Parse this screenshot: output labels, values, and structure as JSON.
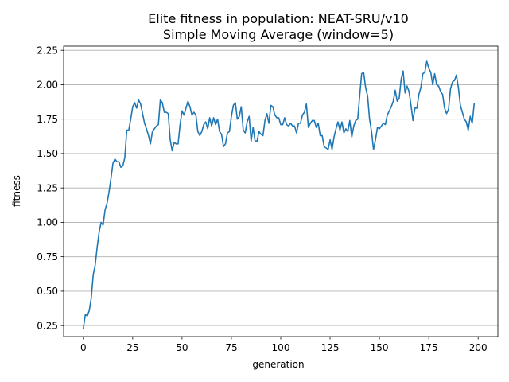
{
  "chart_data": {
    "type": "line",
    "title": "Elite fitness in population: NEAT-SRU/v10",
    "subtitle": "Simple Moving Average (window=5)",
    "xlabel": "generation",
    "ylabel": "fitness",
    "xlim": [
      -10,
      210
    ],
    "ylim": [
      0.17,
      2.28
    ],
    "xticks": [
      0,
      25,
      50,
      75,
      100,
      125,
      150,
      175,
      200
    ],
    "yticks": [
      0.25,
      0.5,
      0.75,
      1.0,
      1.25,
      1.5,
      1.75,
      2.0,
      2.25
    ],
    "ytick_labels": [
      "0.25",
      "0.50",
      "0.75",
      "1.00",
      "1.25",
      "1.50",
      "1.75",
      "2.00",
      "2.25"
    ],
    "grid": "horizontal",
    "line_color": "#1f77b4",
    "series": [
      {
        "values": [
          0.23,
          0.33,
          0.32,
          0.36,
          0.45,
          0.62,
          0.69,
          0.82,
          0.93,
          1.0,
          0.98,
          1.09,
          1.14,
          1.22,
          1.32,
          1.43,
          1.46,
          1.44,
          1.44,
          1.4,
          1.41,
          1.47,
          1.67,
          1.67,
          1.75,
          1.84,
          1.87,
          1.83,
          1.89,
          1.86,
          1.79,
          1.72,
          1.68,
          1.63,
          1.57,
          1.66,
          1.68,
          1.7,
          1.71,
          1.89,
          1.87,
          1.8,
          1.8,
          1.79,
          1.6,
          1.52,
          1.58,
          1.57,
          1.57,
          1.71,
          1.81,
          1.78,
          1.83,
          1.88,
          1.84,
          1.78,
          1.8,
          1.78,
          1.66,
          1.63,
          1.66,
          1.71,
          1.73,
          1.68,
          1.76,
          1.7,
          1.76,
          1.71,
          1.75,
          1.66,
          1.64,
          1.55,
          1.57,
          1.65,
          1.66,
          1.77,
          1.85,
          1.87,
          1.75,
          1.77,
          1.84,
          1.67,
          1.65,
          1.73,
          1.77,
          1.59,
          1.69,
          1.59,
          1.59,
          1.66,
          1.64,
          1.63,
          1.74,
          1.79,
          1.72,
          1.85,
          1.84,
          1.78,
          1.76,
          1.76,
          1.71,
          1.71,
          1.76,
          1.71,
          1.7,
          1.72,
          1.7,
          1.7,
          1.65,
          1.72,
          1.72,
          1.78,
          1.8,
          1.86,
          1.69,
          1.72,
          1.74,
          1.74,
          1.69,
          1.72,
          1.63,
          1.63,
          1.55,
          1.54,
          1.53,
          1.6,
          1.53,
          1.62,
          1.68,
          1.73,
          1.67,
          1.73,
          1.65,
          1.68,
          1.66,
          1.74,
          1.62,
          1.7,
          1.74,
          1.75,
          1.92,
          2.08,
          2.09,
          1.98,
          1.92,
          1.75,
          1.66,
          1.53,
          1.6,
          1.69,
          1.68,
          1.7,
          1.72,
          1.71,
          1.78,
          1.81,
          1.84,
          1.88,
          1.96,
          1.88,
          1.9,
          2.04,
          2.1,
          1.94,
          1.99,
          1.95,
          1.85,
          1.74,
          1.83,
          1.83,
          1.93,
          1.98,
          2.08,
          2.09,
          2.17,
          2.12,
          2.09,
          2.0,
          2.08,
          2.0,
          1.99,
          1.95,
          1.93,
          1.83,
          1.79,
          1.82,
          1.97,
          2.02,
          2.03,
          2.07,
          1.98,
          1.85,
          1.8,
          1.75,
          1.73,
          1.67,
          1.77,
          1.72,
          1.86
        ]
      }
    ]
  }
}
